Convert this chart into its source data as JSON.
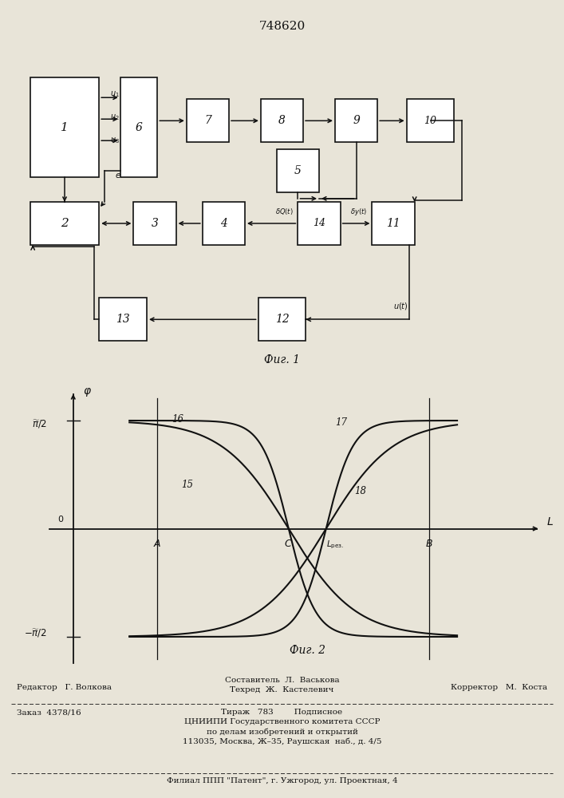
{
  "patent_number": "748620",
  "fig1_caption": "Фиг. 1",
  "fig2_caption": "Фиг. 2",
  "bg_color": "#e8e4d8",
  "line_color": "#111111",
  "text_color": "#111111",
  "footer_line1_left": "Редактор   Г. Волкова",
  "footer_line1_center": "Составитель  Л.  Васькова\nТехред  Ж.  Кастелевич",
  "footer_line1_right": "Корректор   М.  Коста",
  "footer_line2_left": "Заказ  4378/16",
  "footer_line2_center": "Тираж   783        Подписное\nЦНИИПИ Государственного комитета СССР\nпо делам изобретений и открытий\n113035, Москва, Ж–35, Раушская  наб., д. 4/5",
  "footer_line3": "Филиал ППП \"Патент\", г. Ужгород, ул. Проектная, 4"
}
